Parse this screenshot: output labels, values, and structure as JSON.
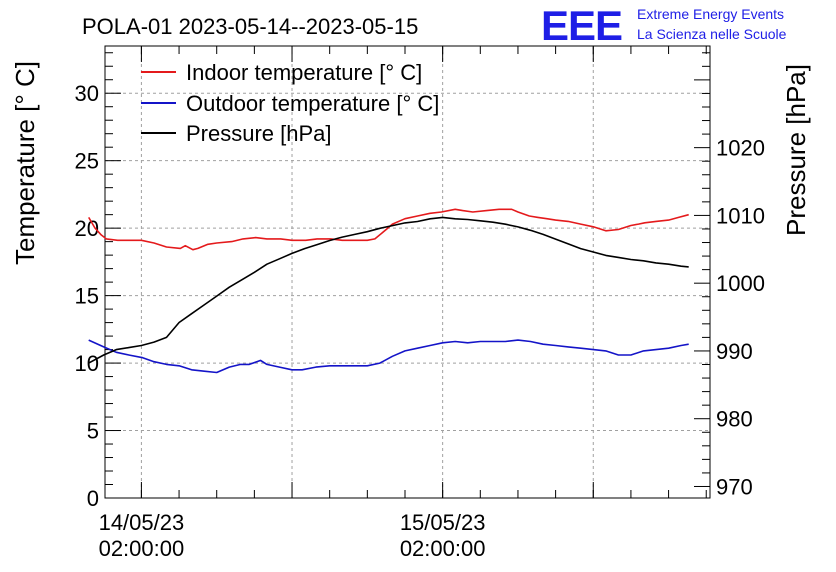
{
  "header": {
    "title": "POLA-01 2023-05-14--2023-05-15",
    "logo_text": "EEE",
    "brand_line1": "Extreme Energy Events",
    "brand_line2": "La Scienza nelle Scuole"
  },
  "colors": {
    "indoor": "#e41a1c",
    "outdoor": "#1414c8",
    "pressure": "#000000",
    "grid": "#a0a0a0",
    "logo": "#1e1ee6"
  },
  "chart_data": {
    "type": "line",
    "title": "POLA-01 2023-05-14--2023-05-15",
    "xlabel": "",
    "ylabel": "Temperature [° C]",
    "y2label": "Pressure [hPa]",
    "x_unit": "hours since 2023-05-14 00:00",
    "xlim": [
      -0.9,
      47.3
    ],
    "ylim": [
      0,
      33.5
    ],
    "y2lim": [
      968.3,
      1035
    ],
    "grid": true,
    "legend_position": "top-left",
    "x_ticks": [
      {
        "x": 2,
        "line1": "14/05/23",
        "line2": "02:00:00"
      },
      {
        "x": 26,
        "line1": "15/05/23",
        "line2": "02:00:00"
      }
    ],
    "y_ticks": [
      0,
      5,
      10,
      15,
      20,
      25,
      30
    ],
    "y2_ticks": [
      970,
      980,
      990,
      1000,
      1010,
      1020
    ],
    "series": [
      {
        "name": "Indoor temperature [° C]",
        "axis": "left",
        "x": [
          -2.2,
          -1.7,
          -1.2,
          -0.8,
          0.1,
          1.0,
          2.0,
          3.0,
          4.0,
          5.1,
          5.5,
          6.1,
          6.5,
          7.3,
          8.0,
          9.2,
          10.1,
          11.1,
          12.0,
          13.1,
          14.0,
          15.1,
          16.0,
          17.1,
          18.0,
          19.1,
          20.0,
          20.6,
          21.5,
          22.0,
          23.0,
          24.0,
          25.0,
          25.9,
          27.0,
          27.6,
          28.4,
          29.5,
          30.5,
          31.5,
          32.0,
          32.9,
          33.6,
          34.3,
          35.0,
          36.0,
          37.0,
          38.0,
          39.0,
          40.0,
          41.0,
          41.6,
          42.1,
          43.0,
          44.0,
          44.8,
          45.6
        ],
        "values": [
          20.8,
          20.0,
          19.5,
          19.2,
          19.1,
          19.1,
          19.1,
          18.9,
          18.6,
          18.5,
          18.7,
          18.4,
          18.5,
          18.8,
          18.9,
          19.0,
          19.2,
          19.3,
          19.2,
          19.2,
          19.1,
          19.1,
          19.2,
          19.2,
          19.1,
          19.1,
          19.1,
          19.2,
          19.9,
          20.3,
          20.7,
          20.9,
          21.1,
          21.2,
          21.4,
          21.3,
          21.2,
          21.3,
          21.4,
          21.4,
          21.2,
          20.9,
          20.8,
          20.7,
          20.6,
          20.5,
          20.3,
          20.1,
          19.8,
          19.9,
          20.2,
          20.3,
          20.4,
          20.5,
          20.6,
          20.8,
          21.0
        ]
      },
      {
        "name": "Outdoor temperature [° C]",
        "axis": "left",
        "x": [
          -2.2,
          -1.0,
          0.0,
          1.0,
          2.1,
          3.0,
          4.0,
          5.0,
          6.0,
          7.0,
          8.0,
          9.0,
          9.9,
          10.6,
          11.5,
          12.0,
          13.0,
          14.0,
          14.8,
          15.9,
          17.0,
          18.0,
          19.0,
          20.0,
          21.0,
          22.0,
          23.0,
          24.0,
          25.0,
          26.0,
          27.0,
          28.0,
          29.0,
          30.0,
          31.0,
          32.0,
          33.0,
          34.0,
          35.0,
          36.0,
          37.0,
          38.0,
          39.0,
          40.0,
          41.0,
          42.0,
          43.0,
          44.0,
          45.0,
          45.6
        ],
        "values": [
          11.7,
          11.2,
          10.8,
          10.6,
          10.4,
          10.1,
          9.9,
          9.8,
          9.5,
          9.4,
          9.3,
          9.7,
          9.9,
          9.9,
          10.2,
          9.9,
          9.7,
          9.5,
          9.5,
          9.7,
          9.8,
          9.8,
          9.8,
          9.8,
          10.0,
          10.5,
          10.9,
          11.1,
          11.3,
          11.5,
          11.6,
          11.5,
          11.6,
          11.6,
          11.6,
          11.7,
          11.6,
          11.4,
          11.3,
          11.2,
          11.1,
          11.0,
          10.9,
          10.6,
          10.6,
          10.9,
          11.0,
          11.1,
          11.3,
          11.4
        ]
      },
      {
        "name": "Pressure [hPa]",
        "axis": "right",
        "x": [
          -2.2,
          -1.0,
          0.0,
          1.0,
          2.0,
          3.0,
          4.0,
          5.0,
          6.0,
          7.0,
          8.0,
          9.0,
          10.0,
          11.0,
          12.0,
          13.0,
          14.0,
          15.0,
          16.0,
          17.0,
          18.0,
          19.0,
          20.0,
          21.0,
          22.0,
          23.0,
          24.0,
          25.0,
          26.0,
          27.0,
          28.0,
          29.0,
          30.0,
          31.0,
          32.0,
          33.0,
          34.0,
          35.0,
          36.0,
          37.0,
          38.0,
          39.0,
          40.0,
          41.0,
          42.0,
          43.0,
          44.0,
          45.0,
          45.6
        ],
        "values": [
          988.2,
          989.4,
          990.2,
          990.5,
          990.8,
          991.3,
          992.0,
          994.2,
          995.5,
          996.8,
          998.1,
          999.4,
          1000.5,
          1001.6,
          1002.8,
          1003.6,
          1004.4,
          1005.1,
          1005.7,
          1006.3,
          1006.8,
          1007.2,
          1007.6,
          1008.1,
          1008.5,
          1008.9,
          1009.1,
          1009.5,
          1009.7,
          1009.5,
          1009.4,
          1009.2,
          1009.0,
          1008.7,
          1008.3,
          1007.8,
          1007.2,
          1006.5,
          1005.8,
          1005.1,
          1004.6,
          1004.1,
          1003.8,
          1003.5,
          1003.3,
          1003.0,
          1002.8,
          1002.5,
          1002.4
        ]
      }
    ]
  }
}
